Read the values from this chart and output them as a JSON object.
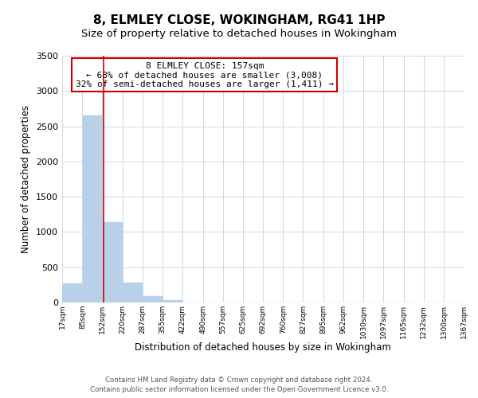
{
  "title": "8, ELMLEY CLOSE, WOKINGHAM, RG41 1HP",
  "subtitle": "Size of property relative to detached houses in Wokingham",
  "xlabel": "Distribution of detached houses by size in Wokingham",
  "ylabel": "Number of detached properties",
  "footer_line1": "Contains HM Land Registry data © Crown copyright and database right 2024.",
  "footer_line2": "Contains public sector information licensed under the Open Government Licence v3.0.",
  "annotation_line1": "8 ELMLEY CLOSE: 157sqm",
  "annotation_line2": "← 68% of detached houses are smaller (3,008)",
  "annotation_line3": "32% of semi-detached houses are larger (1,411) →",
  "bar_edges": [
    17,
    85,
    152,
    220,
    287,
    355,
    422,
    490,
    557,
    625,
    692,
    760,
    827,
    895,
    962,
    1030,
    1097,
    1165,
    1232,
    1300,
    1367
  ],
  "bar_heights": [
    270,
    2650,
    1140,
    280,
    85,
    35,
    0,
    0,
    0,
    0,
    0,
    0,
    0,
    0,
    0,
    0,
    0,
    0,
    0,
    0
  ],
  "bar_color": "#b8d0e8",
  "bar_edge_color": "#b8d0e8",
  "red_line_x": 157,
  "ylim": [
    0,
    3500
  ],
  "yticks": [
    0,
    500,
    1000,
    1500,
    2000,
    2500,
    3000,
    3500
  ],
  "tick_labels": [
    "17sqm",
    "85sqm",
    "152sqm",
    "220sqm",
    "287sqm",
    "355sqm",
    "422sqm",
    "490sqm",
    "557sqm",
    "625sqm",
    "692sqm",
    "760sqm",
    "827sqm",
    "895sqm",
    "962sqm",
    "1030sqm",
    "1097sqm",
    "1165sqm",
    "1232sqm",
    "1300sqm",
    "1367sqm"
  ],
  "grid_color": "#ccd9e8",
  "background_color": "#ffffff",
  "title_fontsize": 11,
  "subtitle_fontsize": 9.5,
  "annotation_box_color": "#ffffff",
  "annotation_box_edge": "#cc0000",
  "red_line_color": "#cc0000"
}
